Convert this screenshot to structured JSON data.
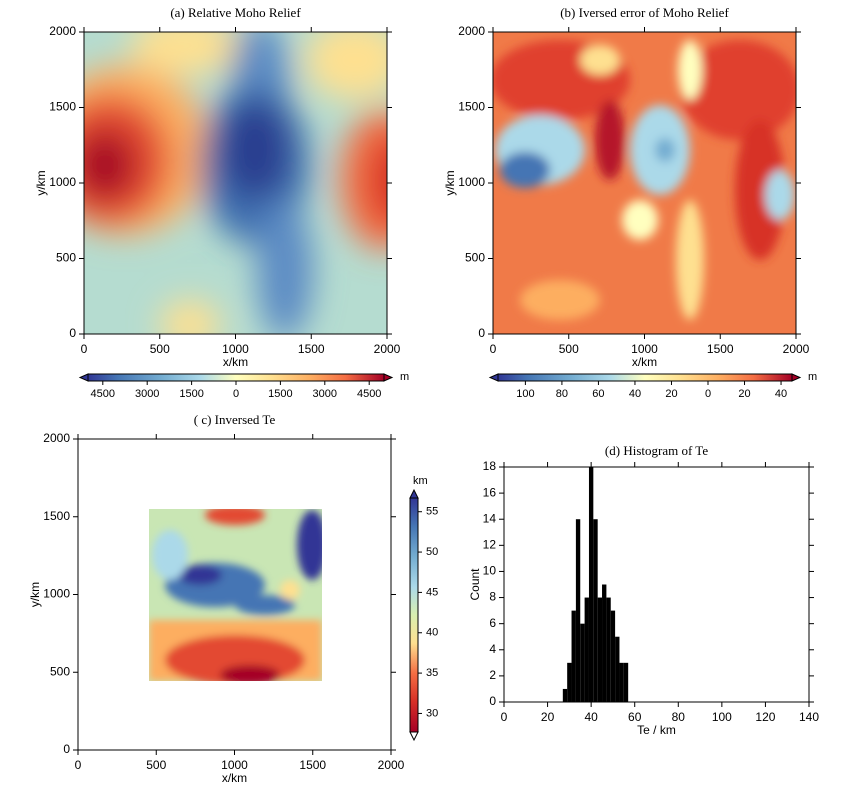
{
  "chart_data": [
    {
      "type": "heatmap",
      "title": "(a)   Relative Moho Relief",
      "x_label": "x/km",
      "y_label": "y/km",
      "xlim": [
        0,
        2000
      ],
      "ylim": [
        0,
        2000
      ],
      "xticks": [
        0,
        500,
        1000,
        1500,
        2000
      ],
      "yticks": [
        0,
        500,
        1000,
        1500,
        2000
      ],
      "colorbar_label": "m",
      "colorbar_orientation": "horizontal",
      "colorbar_lim": [
        -5000,
        5000
      ],
      "colorbar_ticks": [
        {
          "value": -4500,
          "label": "4500"
        },
        {
          "value": -3000,
          "label": "3000"
        },
        {
          "value": -1500,
          "label": "1500"
        },
        0,
        1500,
        3000,
        4500
      ]
    },
    {
      "type": "heatmap",
      "title": "(b)   Iversed error of Moho Relief",
      "x_label": "x/km",
      "y_label": "y/km",
      "xlim": [
        0,
        2000
      ],
      "ylim": [
        0,
        2000
      ],
      "xticks": [
        0,
        500,
        1000,
        1500,
        2000
      ],
      "yticks": [
        0,
        500,
        1000,
        1500,
        2000
      ],
      "colorbar_label": "m",
      "colorbar_orientation": "horizontal",
      "colorbar_lim": [
        -115,
        46
      ],
      "colorbar_ticks": [
        {
          "value": -100,
          "label": "100"
        },
        {
          "value": -80,
          "label": "80"
        },
        {
          "value": -60,
          "label": "60"
        },
        {
          "value": -40,
          "label": "40"
        },
        {
          "value": -20,
          "label": "20"
        },
        0,
        20,
        40
      ]
    },
    {
      "type": "heatmap",
      "title": "( c)  Inversed Te",
      "x_label": "x/km",
      "y_label": "y/km",
      "xlim": [
        0,
        2000
      ],
      "ylim": [
        0,
        2000
      ],
      "xticks": [
        0,
        500,
        1000,
        1500,
        2000
      ],
      "yticks": [
        0,
        500,
        1000,
        1500,
        2000
      ],
      "colorbar_label": "km",
      "colorbar_orientation": "vertical",
      "colorbar_lim": [
        27.7,
        56.7
      ],
      "colorbar_ticks": [
        30,
        35,
        40,
        45,
        50,
        55
      ]
    },
    {
      "type": "histogram",
      "title": "(d)  Histogram of Te",
      "x_label": "Te / km",
      "y_label": "Count",
      "xlim": [
        0,
        140
      ],
      "ylim": [
        0,
        18
      ],
      "xticks": [
        0,
        20,
        40,
        60,
        80,
        100,
        120,
        140
      ],
      "yticks": [
        0,
        2,
        4,
        6,
        8,
        10,
        12,
        14,
        16,
        18
      ],
      "color": "#000000",
      "bins": [
        27,
        29,
        31,
        33,
        35,
        37,
        39,
        41,
        43,
        45,
        47,
        49,
        51,
        53,
        55,
        57
      ],
      "counts": [
        1,
        3,
        7,
        14,
        6,
        8,
        18,
        14,
        8,
        9,
        8,
        7,
        5,
        3,
        3
      ]
    }
  ]
}
